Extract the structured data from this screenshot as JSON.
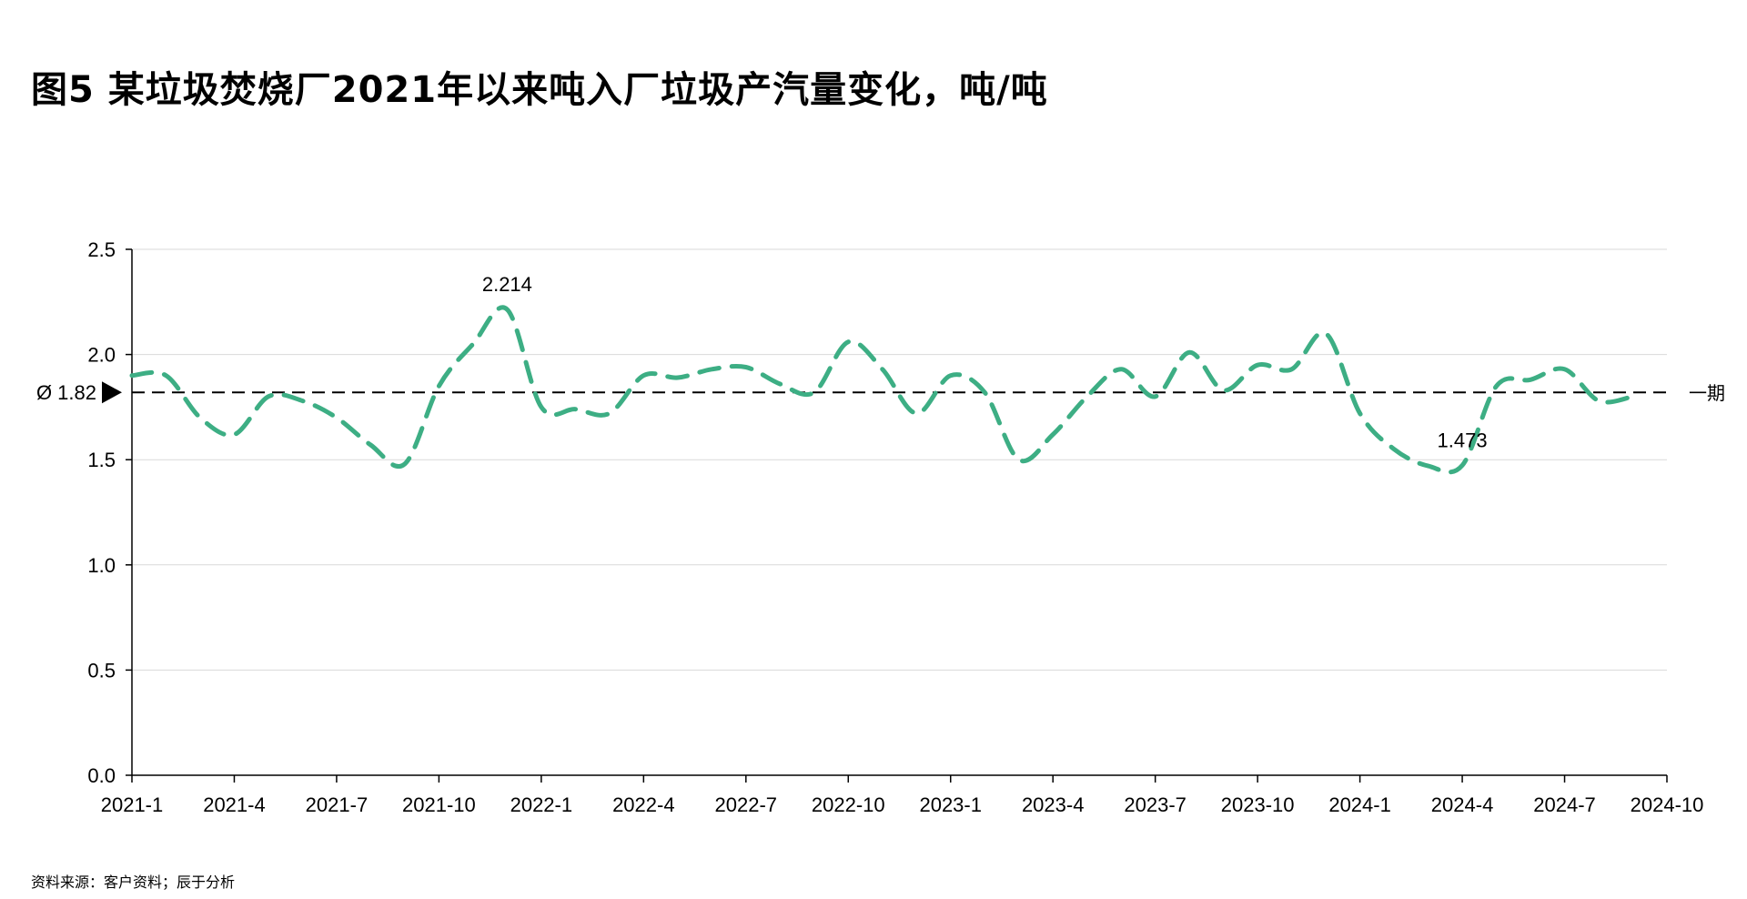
{
  "title": "图5 某垃圾焚烧厂2021年以来吨入厂垃圾产汽量变化，吨/吨",
  "source": "资料来源：客户资料；辰于分析",
  "colors": {
    "series": "#3DAE84",
    "reference": "#000000",
    "grid": "#D9D9D9",
    "axis": "#000000"
  },
  "chart_data": {
    "type": "line",
    "line_style": "dashed-smooth",
    "ylim": [
      0,
      2.5
    ],
    "y_ticks": [
      "0.0",
      "0.5",
      "1.0",
      "1.5",
      "2.0",
      "2.5"
    ],
    "y_tick_values": [
      0,
      0.5,
      1.0,
      1.5,
      2.0,
      2.5
    ],
    "grid": "horizontal",
    "x_tick_labels": [
      "2021-1",
      "2021-4",
      "2021-7",
      "2021-10",
      "2022-1",
      "2022-4",
      "2022-7",
      "2022-10",
      "2023-1",
      "2023-4",
      "2023-7",
      "2023-10",
      "2024-1",
      "2024-4",
      "2024-7",
      "2024-10"
    ],
    "x": [
      "2021-1",
      "2021-2",
      "2021-3",
      "2021-4",
      "2021-5",
      "2021-6",
      "2021-7",
      "2021-8",
      "2021-9",
      "2021-10",
      "2021-11",
      "2021-12",
      "2022-1",
      "2022-2",
      "2022-3",
      "2022-4",
      "2022-5",
      "2022-6",
      "2022-7",
      "2022-8",
      "2022-9",
      "2022-10",
      "2022-11",
      "2022-12",
      "2023-1",
      "2023-2",
      "2023-3",
      "2023-4",
      "2023-5",
      "2023-6",
      "2023-7",
      "2023-8",
      "2023-9",
      "2023-10",
      "2023-11",
      "2023-12",
      "2024-1",
      "2024-2",
      "2024-3",
      "2024-4",
      "2024-5",
      "2024-6",
      "2024-7",
      "2024-8",
      "2024-9"
    ],
    "series": [
      {
        "values": [
          1.9,
          1.9,
          1.7,
          1.62,
          1.8,
          1.78,
          1.7,
          1.57,
          1.48,
          1.85,
          2.05,
          2.214,
          1.75,
          1.74,
          1.72,
          1.9,
          1.89,
          1.93,
          1.94,
          1.86,
          1.82,
          2.06,
          1.93,
          1.72,
          1.9,
          1.82,
          1.5,
          1.62,
          1.8,
          1.93,
          1.8,
          2.01,
          1.83,
          1.95,
          1.93,
          2.1,
          1.72,
          1.55,
          1.47,
          1.473,
          1.85,
          1.88,
          1.93,
          1.78,
          1.8
        ]
      }
    ],
    "annotations": [
      {
        "x": "2021-12",
        "y": 2.214,
        "label": "2.214"
      },
      {
        "x": "2024-4",
        "y": 1.473,
        "label": "1.473"
      }
    ],
    "reference_line": {
      "value": 1.82,
      "left_label": "Ø 1.82",
      "right_label": "一期"
    }
  }
}
